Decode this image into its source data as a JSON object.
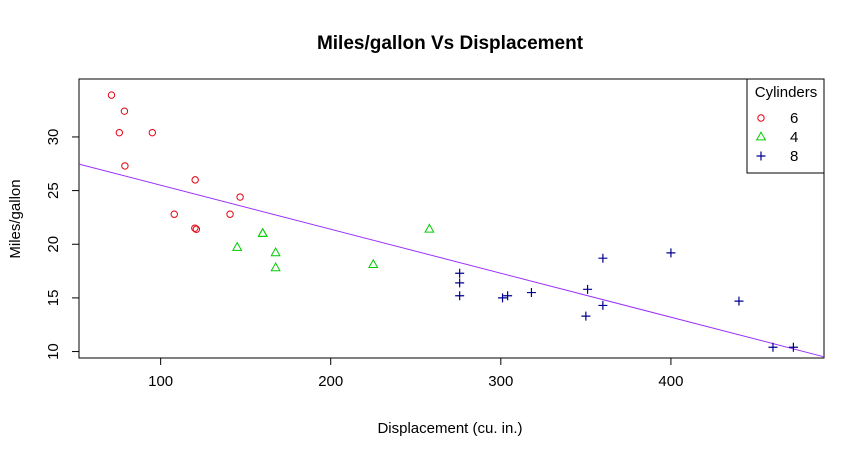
{
  "chart_data": {
    "type": "scatter",
    "title": "Miles/gallon Vs Displacement",
    "xlabel": "Displacement (cu. in.)",
    "ylabel": "Miles/gallon",
    "xlim": [
      52,
      490
    ],
    "ylim": [
      9.4,
      35.4
    ],
    "xticks": [
      100,
      200,
      300,
      400
    ],
    "yticks": [
      10,
      15,
      20,
      25,
      30
    ],
    "grid": false,
    "legend": {
      "title": "Cylinders",
      "placement": "top-right"
    },
    "series": [
      {
        "name": "6",
        "marker": "circle",
        "color": "#e3000f",
        "points": [
          [
            71.1,
            33.9
          ],
          [
            75.7,
            30.4
          ],
          [
            78.7,
            32.4
          ],
          [
            79.0,
            27.3
          ],
          [
            95.1,
            30.4
          ],
          [
            108.0,
            22.8
          ],
          [
            120.1,
            21.5
          ],
          [
            120.3,
            26.0
          ],
          [
            121.0,
            21.4
          ],
          [
            140.8,
            22.8
          ],
          [
            146.7,
            24.4
          ]
        ]
      },
      {
        "name": "4",
        "marker": "triangle",
        "color": "#00cc00",
        "points": [
          [
            145.0,
            19.7
          ],
          [
            160.0,
            21.0
          ],
          [
            160.0,
            21.0
          ],
          [
            167.6,
            19.2
          ],
          [
            167.6,
            17.8
          ],
          [
            225.0,
            18.1
          ],
          [
            258.0,
            21.4
          ]
        ]
      },
      {
        "name": "8",
        "marker": "plus",
        "color": "#00008b",
        "points": [
          [
            275.8,
            16.4
          ],
          [
            275.8,
            17.3
          ],
          [
            275.8,
            15.2
          ],
          [
            301.0,
            15.0
          ],
          [
            304.0,
            15.2
          ],
          [
            318.0,
            15.5
          ],
          [
            350.0,
            13.3
          ],
          [
            351.0,
            15.8
          ],
          [
            360.0,
            18.7
          ],
          [
            360.0,
            14.3
          ],
          [
            400.0,
            19.2
          ],
          [
            440.0,
            14.7
          ],
          [
            460.0,
            10.4
          ],
          [
            472.0,
            10.4
          ]
        ]
      }
    ],
    "regression_line": {
      "color": "#9b30ff",
      "intercept": 29.6,
      "slope": -0.041
    }
  }
}
